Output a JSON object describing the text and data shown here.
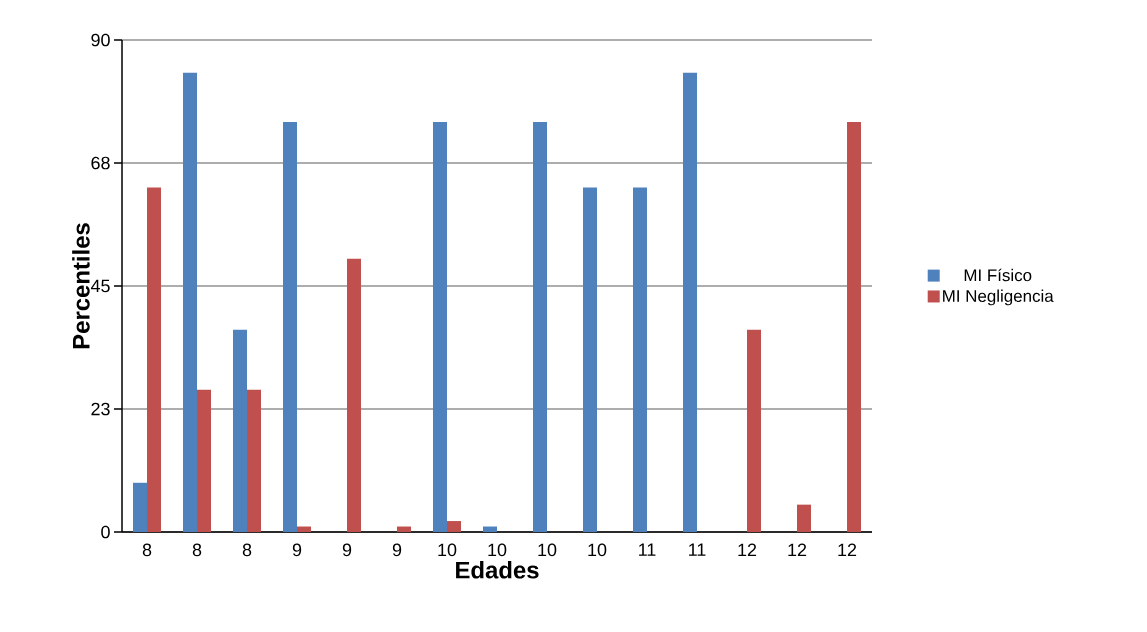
{
  "chart_data": {
    "type": "bar",
    "xlabel": "Edades",
    "ylabel": "Percentiles",
    "categories": [
      "8",
      "8",
      "8",
      "9",
      "9",
      "9",
      "10",
      "10",
      "10",
      "10",
      "11",
      "11",
      "12",
      "12",
      "12"
    ],
    "series": [
      {
        "name": "MI Físico",
        "color": "#4f81bd",
        "values": [
          9,
          84,
          37,
          75,
          0,
          0,
          75,
          1,
          75,
          63,
          63,
          84,
          0,
          0,
          0
        ]
      },
      {
        "name": "MI Negligencia",
        "color": "#c0504d",
        "values": [
          63,
          26,
          26,
          1,
          50,
          1,
          2,
          0,
          0,
          0,
          0,
          0,
          37,
          5,
          75
        ]
      }
    ],
    "ylim": [
      0,
      90
    ],
    "yticks": [
      0,
      {
        "value": 22.5,
        "label": "23"
      },
      45,
      {
        "value": 67.5,
        "label": "68"
      },
      90
    ],
    "grid": "y",
    "legend": "right"
  }
}
